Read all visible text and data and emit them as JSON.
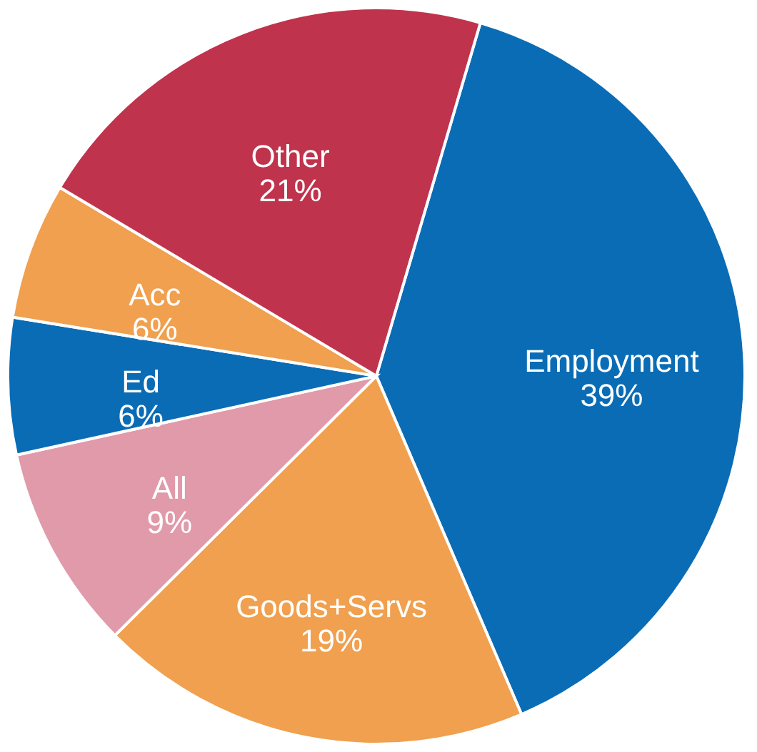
{
  "chart_data": {
    "type": "pie",
    "categories": [
      "Employment",
      "Goods+Servs",
      "All",
      "Ed",
      "Acc",
      "Other"
    ],
    "values": [
      39,
      19,
      9,
      6,
      6,
      21
    ],
    "colors": [
      "#0a6cb5",
      "#f0a04e",
      "#e09aaa",
      "#0a6cb5",
      "#f0a04e",
      "#c0334d"
    ],
    "value_labels": [
      "39%",
      "19%",
      "9%",
      "6%",
      "6%",
      "21%"
    ],
    "legend": false
  }
}
